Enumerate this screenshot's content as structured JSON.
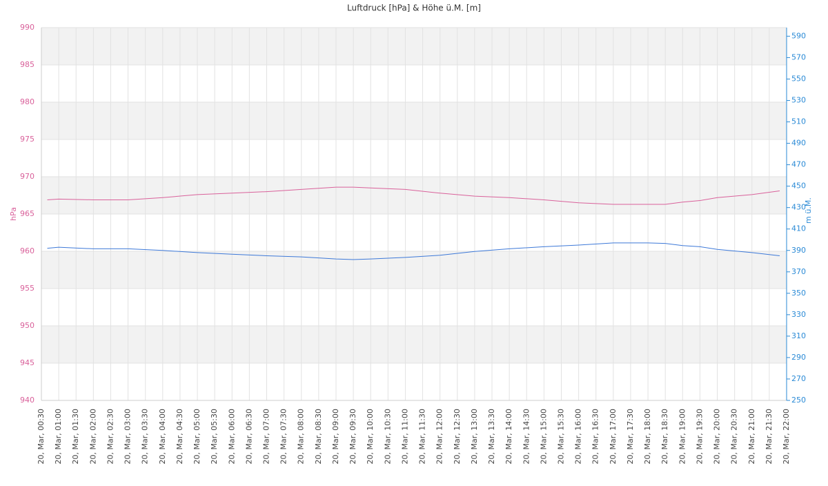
{
  "chart_data": {
    "type": "line",
    "title": "Luftdruck [hPa] & Höhe ü.M. [m]",
    "y_label": "hPa",
    "y2_label": "m ü.M.",
    "xlim": [
      0.5,
      22
    ],
    "ylim": [
      940,
      990
    ],
    "y2lim": [
      250,
      598
    ],
    "yticks": [
      940,
      945,
      950,
      955,
      960,
      965,
      970,
      975,
      980,
      985,
      990
    ],
    "y2ticks": [
      250,
      270,
      290,
      310,
      330,
      350,
      370,
      390,
      410,
      430,
      450,
      470,
      490,
      510,
      530,
      550,
      570,
      590
    ],
    "xticks": [
      {
        "value": 0.5,
        "label": "20, Mar, 00:30"
      },
      {
        "value": 1,
        "label": "20, Mar, 01:00"
      },
      {
        "value": 1.5,
        "label": "20, Mar, 01:30"
      },
      {
        "value": 2,
        "label": "20, Mar, 02:00"
      },
      {
        "value": 2.5,
        "label": "20, Mar, 02:30"
      },
      {
        "value": 3,
        "label": "20, Mar, 03:00"
      },
      {
        "value": 3.5,
        "label": "20, Mar, 03:30"
      },
      {
        "value": 4,
        "label": "20, Mar, 04:00"
      },
      {
        "value": 4.5,
        "label": "20, Mar, 04:30"
      },
      {
        "value": 5,
        "label": "20, Mar, 05:00"
      },
      {
        "value": 5.5,
        "label": "20, Mar, 05:30"
      },
      {
        "value": 6,
        "label": "20, Mar, 06:00"
      },
      {
        "value": 6.5,
        "label": "20, Mar, 06:30"
      },
      {
        "value": 7,
        "label": "20, Mar, 07:00"
      },
      {
        "value": 7.5,
        "label": "20, Mar, 07:30"
      },
      {
        "value": 8,
        "label": "20, Mar, 08:00"
      },
      {
        "value": 8.5,
        "label": "20, Mar, 08:30"
      },
      {
        "value": 9,
        "label": "20, Mar, 09:00"
      },
      {
        "value": 9.5,
        "label": "20, Mar, 09:30"
      },
      {
        "value": 10,
        "label": "20, Mar, 10:00"
      },
      {
        "value": 10.5,
        "label": "20, Mar, 10:30"
      },
      {
        "value": 11,
        "label": "20, Mar, 11:00"
      },
      {
        "value": 11.5,
        "label": "20, Mar, 11:30"
      },
      {
        "value": 12,
        "label": "20, Mar, 12:00"
      },
      {
        "value": 12.5,
        "label": "20, Mar, 12:30"
      },
      {
        "value": 13,
        "label": "20, Mar, 13:00"
      },
      {
        "value": 13.5,
        "label": "20, Mar, 13:30"
      },
      {
        "value": 14,
        "label": "20, Mar, 14:00"
      },
      {
        "value": 14.5,
        "label": "20, Mar, 14:30"
      },
      {
        "value": 15,
        "label": "20, Mar, 15:00"
      },
      {
        "value": 15.5,
        "label": "20, Mar, 15:30"
      },
      {
        "value": 16,
        "label": "20, Mar, 16:00"
      },
      {
        "value": 16.5,
        "label": "20, Mar, 16:30"
      },
      {
        "value": 17,
        "label": "20, Mar, 17:00"
      },
      {
        "value": 17.5,
        "label": "20, Mar, 17:30"
      },
      {
        "value": 18,
        "label": "20, Mar, 18:00"
      },
      {
        "value": 18.5,
        "label": "20, Mar, 18:30"
      },
      {
        "value": 19,
        "label": "20, Mar, 19:00"
      },
      {
        "value": 19.5,
        "label": "20, Mar, 19:30"
      },
      {
        "value": 20,
        "label": "20, Mar, 20:00"
      },
      {
        "value": 20.5,
        "label": "20, Mar, 20:30"
      },
      {
        "value": 21,
        "label": "20, Mar, 21:00"
      },
      {
        "value": 21.5,
        "label": "20, Mar, 21:30"
      },
      {
        "value": 22,
        "label": "20, Mar, 22:00"
      }
    ],
    "grid": true,
    "x": [
      0.67,
      1,
      2,
      3,
      4,
      5,
      6,
      7,
      8,
      9,
      9.5,
      10,
      11,
      12,
      13,
      14,
      15,
      16,
      17,
      18,
      18.5,
      19,
      19.5,
      20,
      21,
      21.8
    ],
    "series": [
      {
        "name": "hPa",
        "color": "#d9609a",
        "values": [
          966.9,
          967.0,
          966.9,
          966.9,
          967.2,
          967.6,
          967.8,
          968.0,
          968.3,
          968.6,
          968.6,
          968.5,
          968.3,
          967.8,
          967.4,
          967.2,
          966.9,
          966.5,
          966.3,
          966.3,
          966.3,
          966.6,
          966.8,
          967.2,
          967.6,
          968.1
        ]
      },
      {
        "name": "m ü.M.",
        "color": "#3c78d8",
        "axis": "y2",
        "values": [
          392,
          393,
          391.5,
          391.5,
          390,
          388,
          386.5,
          385,
          384,
          382,
          381.5,
          382,
          383.5,
          385.5,
          389,
          391.5,
          393.5,
          395,
          397,
          397,
          396.5,
          394.5,
          393.5,
          391,
          388,
          385
        ]
      }
    ]
  }
}
